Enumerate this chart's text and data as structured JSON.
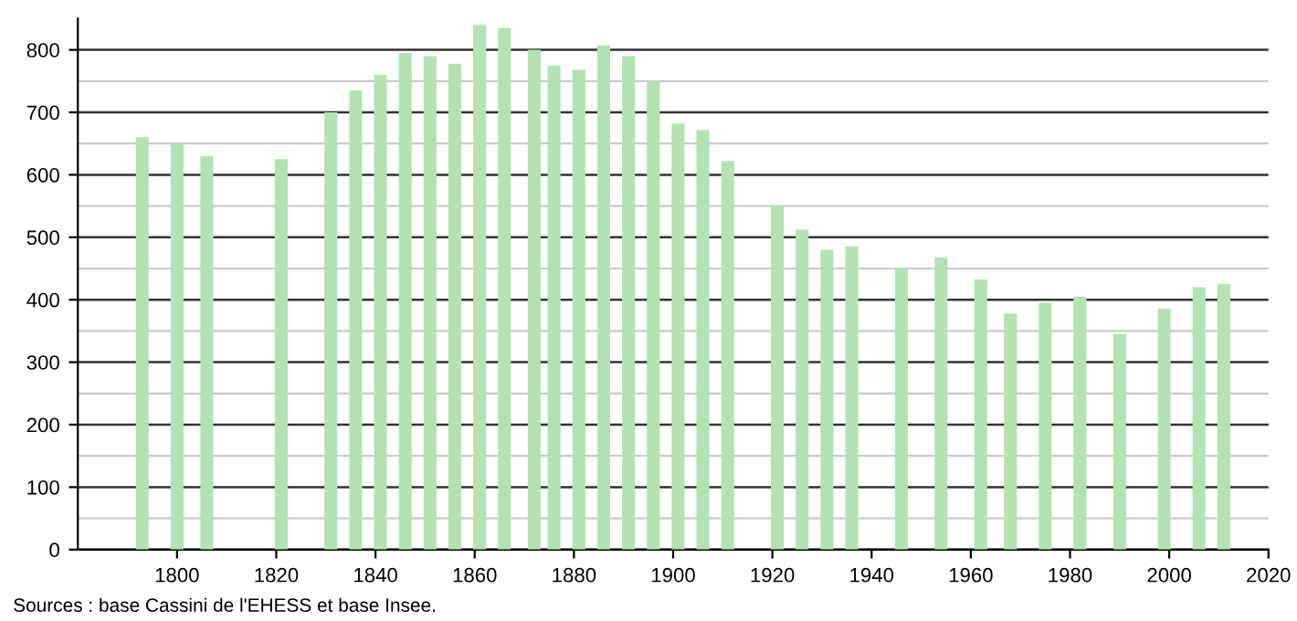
{
  "chart_data": {
    "type": "bar",
    "x": [
      1793,
      1800,
      1806,
      1821,
      1831,
      1836,
      1841,
      1846,
      1851,
      1856,
      1861,
      1866,
      1872,
      1876,
      1881,
      1886,
      1891,
      1896,
      1901,
      1906,
      1911,
      1921,
      1926,
      1931,
      1936,
      1946,
      1954,
      1962,
      1968,
      1975,
      1982,
      1990,
      1999,
      2006,
      2011
    ],
    "values": [
      660,
      650,
      630,
      625,
      700,
      735,
      760,
      795,
      790,
      778,
      840,
      835,
      800,
      775,
      768,
      807,
      790,
      750,
      682,
      672,
      622,
      550,
      512,
      480,
      485,
      450,
      468,
      433,
      378,
      395,
      405,
      345,
      386,
      420,
      425
    ],
    "color": "#b3e3b3",
    "xlim": [
      1780,
      2020
    ],
    "xticks": [
      1800,
      1820,
      1840,
      1860,
      1880,
      1900,
      1920,
      1940,
      1960,
      1980,
      2000,
      2020
    ],
    "ylim": [
      0,
      850
    ],
    "yticks": [
      0,
      100,
      200,
      300,
      400,
      500,
      600,
      700,
      800
    ],
    "grid": "y",
    "annotations": [
      "Sources : base Cassini de l'EHESS et base Insee."
    ]
  }
}
